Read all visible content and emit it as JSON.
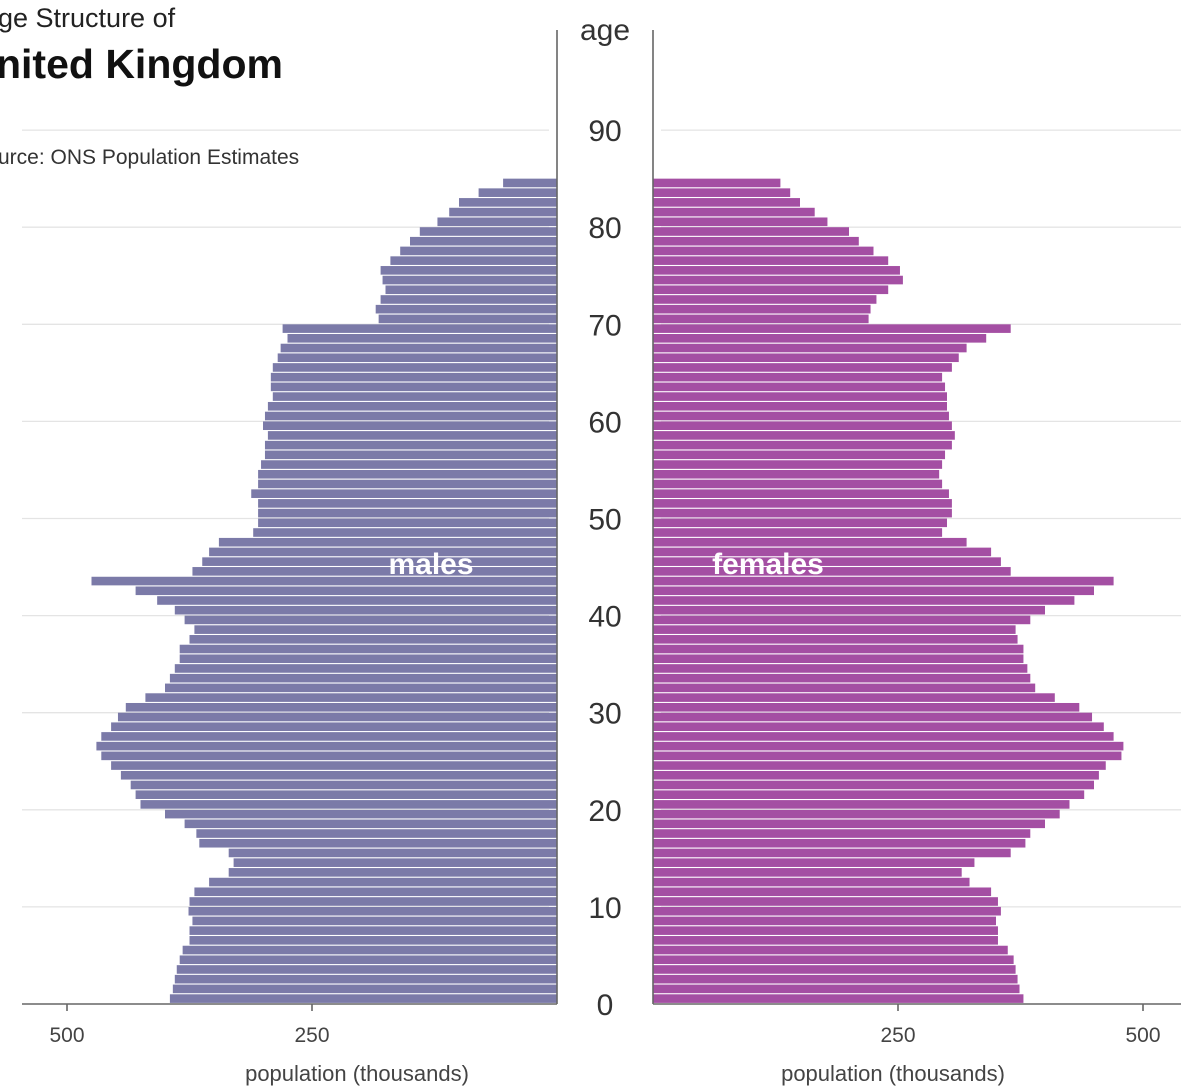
{
  "header": {
    "subtitle": "ge Structure of",
    "title": "nited Kingdom",
    "source": "urce: ONS Population Estimates"
  },
  "colors": {
    "males": "#7b7aa8",
    "females": "#a44fa3",
    "background": "#ffffff"
  },
  "chart_data": {
    "type": "bar",
    "orientation": "horizontal",
    "layout": "population-pyramid",
    "title": "nited Kingdom",
    "subtitle": "ge Structure of",
    "source": "urce: ONS Population Estimates",
    "y_axis": {
      "label": "age",
      "ticks": [
        0,
        10,
        20,
        30,
        40,
        50,
        60,
        70,
        80,
        90
      ],
      "range": [
        0,
        95
      ]
    },
    "x_axis": {
      "label": "population (thousands)",
      "ticks": [
        500,
        250
      ],
      "range": [
        0,
        500
      ]
    },
    "grid": true,
    "categories": [
      0,
      1,
      2,
      3,
      4,
      5,
      6,
      7,
      8,
      9,
      10,
      11,
      12,
      13,
      14,
      15,
      16,
      17,
      18,
      19,
      20,
      21,
      22,
      23,
      24,
      25,
      26,
      27,
      28,
      29,
      30,
      31,
      32,
      33,
      34,
      35,
      36,
      37,
      38,
      39,
      40,
      41,
      42,
      43,
      44,
      45,
      46,
      47,
      48,
      49,
      50,
      51,
      52,
      53,
      54,
      55,
      56,
      57,
      58,
      59,
      60,
      61,
      62,
      63,
      64,
      65,
      66,
      67,
      68,
      69,
      70,
      71,
      72,
      73,
      74,
      75,
      76,
      77,
      78,
      79,
      80,
      81,
      82,
      83,
      84
    ],
    "series": [
      {
        "name": "males",
        "side": "left",
        "values": [
          395,
          392,
          390,
          388,
          385,
          382,
          375,
          375,
          372,
          376,
          375,
          370,
          355,
          335,
          330,
          335,
          365,
          368,
          380,
          400,
          425,
          430,
          435,
          445,
          455,
          465,
          470,
          465,
          455,
          448,
          440,
          420,
          400,
          395,
          390,
          385,
          385,
          375,
          370,
          380,
          390,
          408,
          430,
          475,
          372,
          362,
          355,
          345,
          310,
          305,
          305,
          305,
          312,
          305,
          305,
          302,
          298,
          298,
          295,
          300,
          298,
          295,
          290,
          292,
          292,
          290,
          285,
          282,
          275,
          280,
          182,
          185,
          180,
          175,
          178,
          180,
          170,
          160,
          150,
          140,
          122,
          110,
          100,
          80,
          55
        ]
      },
      {
        "name": "females",
        "side": "right",
        "values": [
          378,
          374,
          372,
          370,
          368,
          362,
          352,
          352,
          350,
          355,
          352,
          345,
          323,
          315,
          328,
          365,
          380,
          385,
          400,
          415,
          425,
          440,
          450,
          455,
          462,
          478,
          480,
          470,
          460,
          448,
          435,
          410,
          390,
          385,
          382,
          378,
          378,
          372,
          370,
          385,
          400,
          430,
          450,
          470,
          365,
          355,
          345,
          320,
          295,
          300,
          305,
          305,
          302,
          295,
          292,
          295,
          298,
          305,
          308,
          305,
          302,
          300,
          300,
          298,
          295,
          305,
          312,
          320,
          340,
          365,
          220,
          222,
          228,
          240,
          255,
          252,
          240,
          225,
          210,
          200,
          178,
          165,
          150,
          140,
          130
        ]
      }
    ],
    "annotations": [
      "males",
      "females"
    ]
  }
}
